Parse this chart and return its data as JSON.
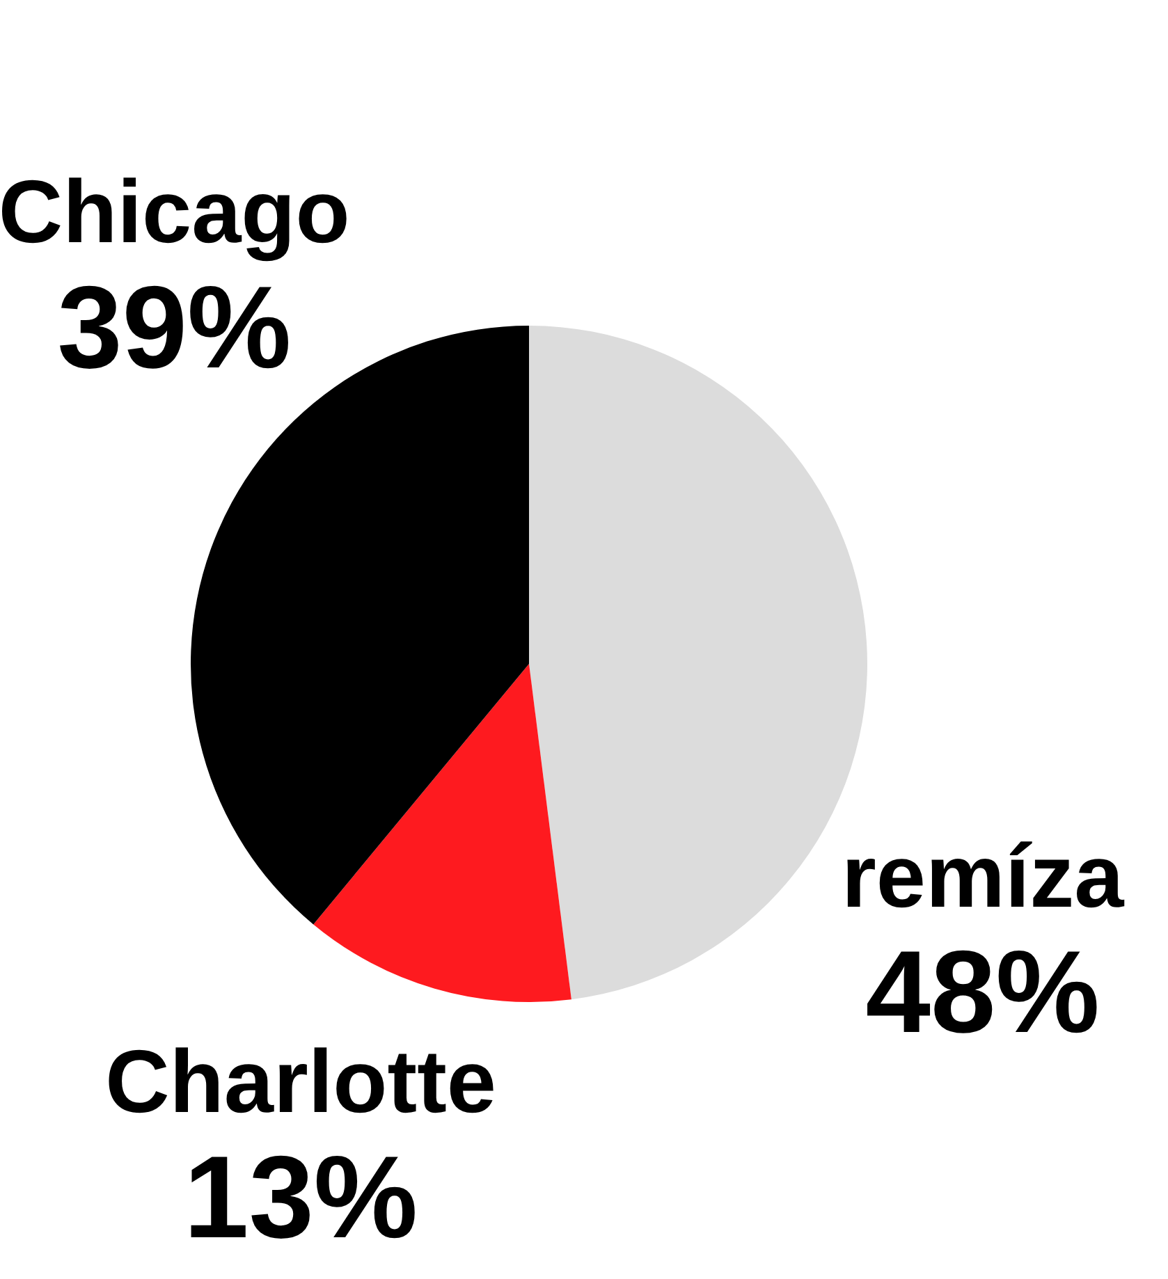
{
  "chart_data": {
    "type": "pie",
    "categories": [
      "remíza",
      "Charlotte",
      "Chicago"
    ],
    "values": [
      48,
      13,
      39
    ],
    "colors": [
      "#dcdcdc",
      "#fe1a1f",
      "#000000"
    ],
    "value_labels": [
      "48%",
      "13%",
      "39%"
    ]
  }
}
